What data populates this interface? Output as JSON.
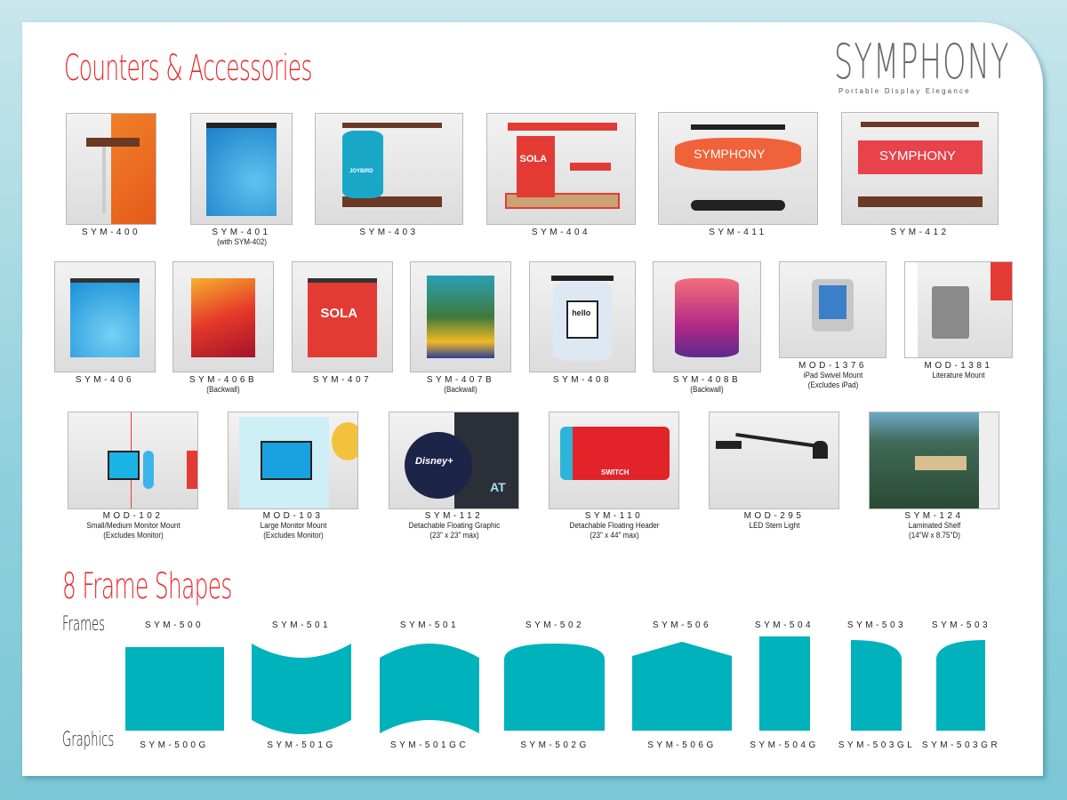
{
  "header": {
    "title": "Counters & Accessories",
    "brand": "SYMPHONY",
    "tagline": "Portable Display Elegance"
  },
  "products": [
    {
      "code": "SYM-400",
      "note": []
    },
    {
      "code": "SYM-401",
      "note": [
        "(with SYM-402)"
      ]
    },
    {
      "code": "SYM-403",
      "note": []
    },
    {
      "code": "SYM-404",
      "note": []
    },
    {
      "code": "SYM-411",
      "note": []
    },
    {
      "code": "SYM-412",
      "note": []
    },
    {
      "code": "SYM-406",
      "note": []
    },
    {
      "code": "SYM-406B",
      "note": [
        "(Backwall)"
      ]
    },
    {
      "code": "SYM-407",
      "note": []
    },
    {
      "code": "SYM-407B",
      "note": [
        "(Backwall)"
      ]
    },
    {
      "code": "SYM-408",
      "note": []
    },
    {
      "code": "SYM-408B",
      "note": [
        "(Backwall)"
      ]
    },
    {
      "code": "MOD-1376",
      "note": [
        "iPad Swivel Mount",
        "(Excludes iPad)"
      ]
    },
    {
      "code": "MOD-1381",
      "note": [
        "Literature Mount"
      ]
    },
    {
      "code": "MOD-102",
      "note": [
        "Small/Medium Monitor Mount",
        "(Excludes Monitor)"
      ]
    },
    {
      "code": "MOD-103",
      "note": [
        "Large Monitor Mount",
        "(Excludes Monitor)"
      ]
    },
    {
      "code": "SYM-112",
      "note": [
        "Detachable Floating Graphic",
        "(23\" x 23\" max)"
      ]
    },
    {
      "code": "SYM-110",
      "note": [
        "Detachable Floating Header",
        "(23\" x 44\" max)"
      ]
    },
    {
      "code": "MOD-295",
      "note": [
        "LED Stem Light"
      ]
    },
    {
      "code": "SYM-124",
      "note": [
        "Laminated Shelf",
        "(14\"W x 8.75\"D)"
      ]
    }
  ],
  "thumb_text": {
    "sola": "SOLA",
    "joybird": "JOYBIRD",
    "meet_symphony": "SYMPHONY",
    "hello": "hello",
    "disney": "Disney+",
    "switch": "SWITCH",
    "at": "AT"
  },
  "frames": {
    "title": "8 Frame Shapes",
    "frames_label": "Frames",
    "graphics_label": "Graphics",
    "color": "#00b2bb",
    "items": [
      {
        "frame": "SYM-500",
        "graphic": "SYM-500G",
        "shape": "rectangle"
      },
      {
        "frame": "SYM-501",
        "graphic": "SYM-501G",
        "shape": "concave-top"
      },
      {
        "frame": "SYM-501",
        "graphic": "SYM-501GC",
        "shape": "convex-top"
      },
      {
        "frame": "SYM-502",
        "graphic": "SYM-502G",
        "shape": "arched-top"
      },
      {
        "frame": "SYM-506",
        "graphic": "SYM-506G",
        "shape": "peaked-top"
      },
      {
        "frame": "SYM-504",
        "graphic": "SYM-504G",
        "shape": "tall-rectangle"
      },
      {
        "frame": "SYM-503",
        "graphic": "SYM-503GL",
        "shape": "curved-left"
      },
      {
        "frame": "SYM-503",
        "graphic": "SYM-503GR",
        "shape": "curved-right"
      }
    ]
  },
  "colors": {
    "accent": "#e8292b",
    "teal": "#00b2bb"
  }
}
